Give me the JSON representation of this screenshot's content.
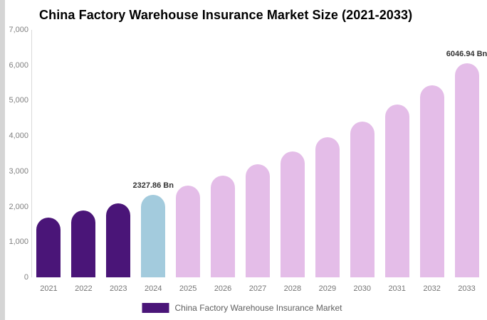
{
  "page": {
    "background_color": "#ffffff",
    "left_strip_color": "#d5d5d5"
  },
  "chart_data": {
    "type": "bar",
    "title": "China Factory Warehouse Insurance Market Size (2021-2033)",
    "unit": "Bn",
    "categories": [
      "2021",
      "2022",
      "2023",
      "2024",
      "2025",
      "2026",
      "2027",
      "2028",
      "2029",
      "2030",
      "2031",
      "2032",
      "2033"
    ],
    "values": [
      1693,
      1882,
      2093,
      2327.86,
      2588,
      2878,
      3200,
      3558,
      3957,
      4400,
      4892,
      5439,
      6046.94
    ],
    "bar_colors": [
      "#4a1578",
      "#4a1578",
      "#4a1578",
      "#a3cbdd",
      "#e4bde8",
      "#e4bde8",
      "#e4bde8",
      "#e4bde8",
      "#e4bde8",
      "#e4bde8",
      "#e4bde8",
      "#e4bde8",
      "#e4bde8"
    ],
    "ylim": [
      0,
      7000
    ],
    "ytick_values": [
      0,
      1000,
      2000,
      3000,
      4000,
      5000,
      6000,
      7000
    ],
    "ytick_labels": [
      "0",
      "1,000",
      "2,000",
      "3,000",
      "4,000",
      "5,000",
      "6,000",
      "7,000"
    ],
    "grid": false,
    "xlabel": "",
    "ylabel": "",
    "annotations": [
      {
        "category": "2024",
        "text": "2327.86 Bn"
      },
      {
        "category": "2033",
        "text": "6046.94 Bn"
      }
    ],
    "legend_position": "bottom",
    "legend": {
      "label": "China Factory Warehouse Insurance Market",
      "swatch_color": "#4a1578"
    }
  }
}
